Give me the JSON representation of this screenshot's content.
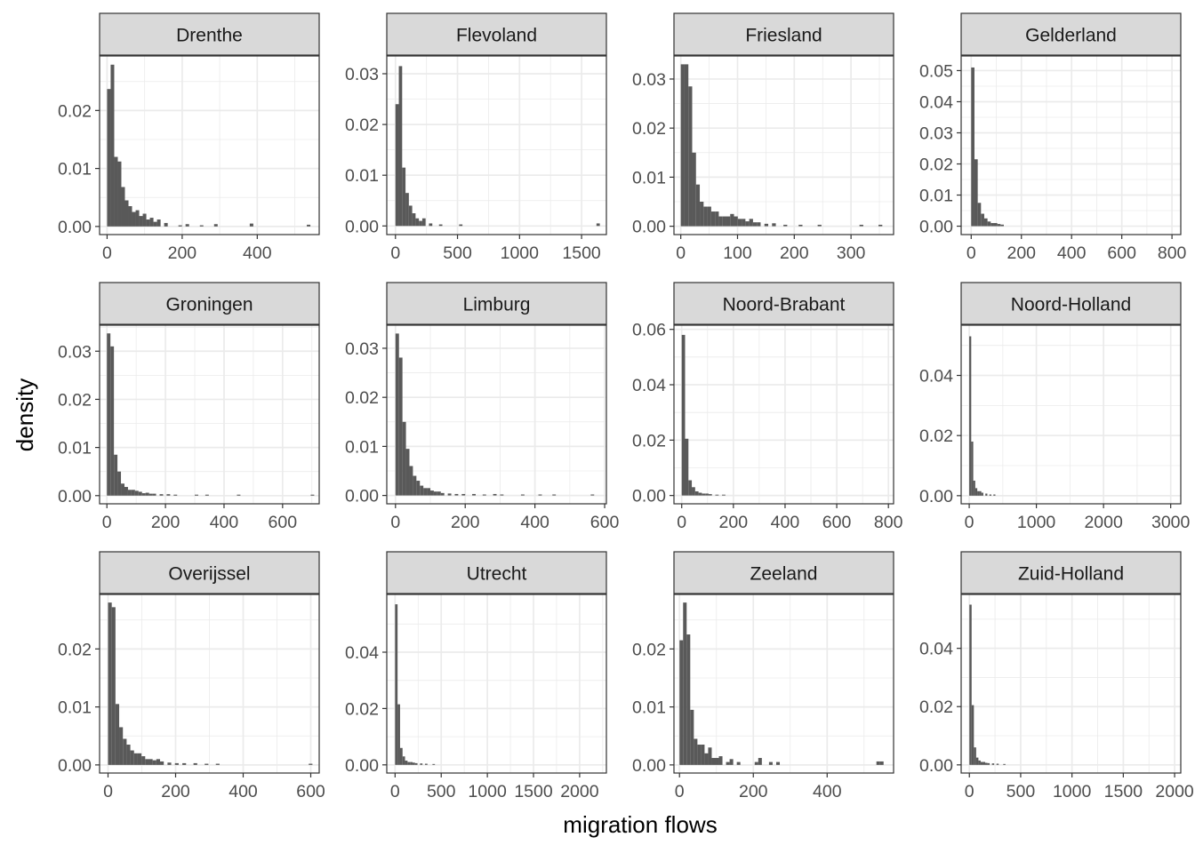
{
  "chart_data": {
    "type": "bar",
    "subtype": "faceted-histogram",
    "xlabel": "migration flows",
    "ylabel": "density",
    "colors": {
      "bar": "#595959",
      "strip": "#d9d9d9",
      "grid": "#ebebeb",
      "frame": "#333333"
    },
    "facets": [
      {
        "name": "Drenthe",
        "xlim": [
          -20,
          565
        ],
        "ylim": [
          -0.0014,
          0.0294
        ],
        "xticks": [
          0,
          200,
          400
        ],
        "yticks": [
          0,
          0.01,
          0.02
        ],
        "ytick_labels": [
          "0.00",
          "0.01",
          "0.02"
        ],
        "bin_width": 9.5,
        "bins": [
          [
            0,
            0.0237
          ],
          [
            9.5,
            0.0279
          ],
          [
            19,
            0.012
          ],
          [
            28.5,
            0.0112
          ],
          [
            38,
            0.0068
          ],
          [
            47.5,
            0.0045
          ],
          [
            57,
            0.0035
          ],
          [
            66.5,
            0.0025
          ],
          [
            76,
            0.0028
          ],
          [
            85.5,
            0.0018
          ],
          [
            95,
            0.0022
          ],
          [
            104.5,
            0.0012
          ],
          [
            114,
            0.0015
          ],
          [
            123.5,
            0.0008
          ],
          [
            133,
            0.0012
          ],
          [
            152,
            0.0006
          ],
          [
            190,
            0.0002
          ],
          [
            209,
            0.0004
          ],
          [
            247,
            0.0002
          ],
          [
            285,
            0.0004
          ],
          [
            380,
            0.0005
          ],
          [
            532,
            0.0003
          ]
        ]
      },
      {
        "name": "Flevoland",
        "xlim": [
          -70,
          1700
        ],
        "ylim": [
          -0.0017,
          0.0335
        ],
        "xticks": [
          0,
          500,
          1000,
          1500
        ],
        "yticks": [
          0,
          0.01,
          0.02,
          0.03
        ],
        "ytick_labels": [
          "0.00",
          "0.01",
          "0.02",
          "0.03"
        ],
        "bin_width": 27,
        "bins": [
          [
            0,
            0.024
          ],
          [
            27,
            0.0315
          ],
          [
            54,
            0.0115
          ],
          [
            81,
            0.0065
          ],
          [
            108,
            0.004
          ],
          [
            135,
            0.0025
          ],
          [
            162,
            0.0015
          ],
          [
            189,
            0.001
          ],
          [
            216,
            0.0015
          ],
          [
            270,
            0.0005
          ],
          [
            351,
            0.0003
          ],
          [
            513,
            0.0003
          ],
          [
            1620,
            0.0005
          ]
        ]
      },
      {
        "name": "Friesland",
        "xlim": [
          -12,
          375
        ],
        "ylim": [
          -0.0017,
          0.0347
        ],
        "xticks": [
          0,
          100,
          200,
          300
        ],
        "yticks": [
          0,
          0.01,
          0.02,
          0.03
        ],
        "ytick_labels": [
          "0.00",
          "0.01",
          "0.02",
          "0.03"
        ],
        "bin_width": 6.7,
        "bins": [
          [
            0,
            0.033
          ],
          [
            6.7,
            0.033
          ],
          [
            13.4,
            0.0285
          ],
          [
            20.1,
            0.015
          ],
          [
            26.8,
            0.0085
          ],
          [
            33.5,
            0.005
          ],
          [
            40.2,
            0.004
          ],
          [
            46.9,
            0.004
          ],
          [
            53.6,
            0.003
          ],
          [
            60.3,
            0.003
          ],
          [
            67,
            0.002
          ],
          [
            73.7,
            0.002
          ],
          [
            80.4,
            0.002
          ],
          [
            87.1,
            0.0025
          ],
          [
            93.8,
            0.002
          ],
          [
            100.5,
            0.0015
          ],
          [
            107.2,
            0.0015
          ],
          [
            113.9,
            0.001
          ],
          [
            120.6,
            0.0015
          ],
          [
            127.3,
            0.0008
          ],
          [
            134,
            0.0008
          ],
          [
            147.4,
            0.0005
          ],
          [
            160.8,
            0.0006
          ],
          [
            180.9,
            0.0003
          ],
          [
            207.7,
            0.0003
          ],
          [
            241.2,
            0.0003
          ],
          [
            314.9,
            0.0003
          ],
          [
            348.4,
            0.0003
          ]
        ]
      },
      {
        "name": "Gelderland",
        "xlim": [
          -40,
          835
        ],
        "ylim": [
          -0.0027,
          0.0547
        ],
        "xticks": [
          0,
          200,
          400,
          600,
          800
        ],
        "yticks": [
          0,
          0.01,
          0.02,
          0.03,
          0.04,
          0.05
        ],
        "ytick_labels": [
          "0.00",
          "0.01",
          "0.02",
          "0.03",
          "0.04",
          "0.05"
        ],
        "bin_width": 13,
        "bins": [
          [
            0,
            0.051
          ],
          [
            13,
            0.0215
          ],
          [
            26,
            0.0075
          ],
          [
            39,
            0.004
          ],
          [
            52,
            0.0025
          ],
          [
            65,
            0.0015
          ],
          [
            78,
            0.001
          ],
          [
            91,
            0.001
          ],
          [
            104,
            0.0007
          ],
          [
            117,
            0.0005
          ]
        ]
      },
      {
        "name": "Groningen",
        "xlim": [
          -25,
          725
        ],
        "ylim": [
          -0.0017,
          0.0354
        ],
        "xticks": [
          0,
          200,
          400,
          600
        ],
        "yticks": [
          0,
          0.01,
          0.02,
          0.03
        ],
        "ytick_labels": [
          "0.00",
          "0.01",
          "0.02",
          "0.03"
        ],
        "bin_width": 12,
        "bins": [
          [
            0,
            0.0337
          ],
          [
            12,
            0.031
          ],
          [
            24,
            0.0085
          ],
          [
            36,
            0.005
          ],
          [
            48,
            0.0025
          ],
          [
            60,
            0.0018
          ],
          [
            72,
            0.0012
          ],
          [
            84,
            0.0012
          ],
          [
            96,
            0.001
          ],
          [
            108,
            0.0008
          ],
          [
            120,
            0.0005
          ],
          [
            132,
            0.0006
          ],
          [
            144,
            0.0004
          ],
          [
            156,
            0.0004
          ],
          [
            180,
            0.0003
          ],
          [
            204,
            0.0003
          ],
          [
            228,
            0.0002
          ],
          [
            300,
            0.0002
          ],
          [
            336,
            0.0002
          ],
          [
            444,
            0.0002
          ],
          [
            696,
            0.0002
          ]
        ]
      },
      {
        "name": "Limburg",
        "xlim": [
          -25,
          605
        ],
        "ylim": [
          -0.0017,
          0.0347
        ],
        "xticks": [
          0,
          200,
          400,
          600
        ],
        "yticks": [
          0,
          0.01,
          0.02,
          0.03
        ],
        "ytick_labels": [
          "0.00",
          "0.01",
          "0.02",
          "0.03"
        ],
        "bin_width": 10,
        "bins": [
          [
            0,
            0.033
          ],
          [
            10,
            0.0281
          ],
          [
            20,
            0.015
          ],
          [
            30,
            0.0095
          ],
          [
            40,
            0.006
          ],
          [
            50,
            0.004
          ],
          [
            60,
            0.003
          ],
          [
            70,
            0.002
          ],
          [
            80,
            0.0015
          ],
          [
            90,
            0.0015
          ],
          [
            100,
            0.001
          ],
          [
            110,
            0.0008
          ],
          [
            120,
            0.0008
          ],
          [
            130,
            0.0005
          ],
          [
            150,
            0.0004
          ],
          [
            170,
            0.0003
          ],
          [
            190,
            0.0003
          ],
          [
            220,
            0.0003
          ],
          [
            250,
            0.0002
          ],
          [
            280,
            0.0003
          ],
          [
            300,
            0.0002
          ],
          [
            360,
            0.0002
          ],
          [
            410,
            0.0002
          ],
          [
            450,
            0.0002
          ],
          [
            560,
            0.0002
          ]
        ]
      },
      {
        "name": "Noord-Brabant",
        "xlim": [
          -30,
          820
        ],
        "ylim": [
          -0.003,
          0.0615
        ],
        "xticks": [
          0,
          200,
          400,
          600,
          800
        ],
        "yticks": [
          0,
          0.02,
          0.04,
          0.06
        ],
        "ytick_labels": [
          "0.00",
          "0.02",
          "0.04",
          "0.06"
        ],
        "bin_width": 13,
        "bins": [
          [
            0,
            0.058
          ],
          [
            13,
            0.0205
          ],
          [
            26,
            0.0055
          ],
          [
            39,
            0.003
          ],
          [
            52,
            0.0015
          ],
          [
            65,
            0.001
          ],
          [
            78,
            0.0007
          ],
          [
            91,
            0.0007
          ],
          [
            104,
            0.0005
          ],
          [
            130,
            0.0003
          ],
          [
            156,
            0.0003
          ]
        ]
      },
      {
        "name": "Noord-Holland",
        "xlim": [
          -120,
          3150
        ],
        "ylim": [
          -0.0027,
          0.0567
        ],
        "xticks": [
          0,
          1000,
          2000,
          3000
        ],
        "yticks": [
          0,
          0.02,
          0.04
        ],
        "ytick_labels": [
          "0.00",
          "0.02",
          "0.04"
        ],
        "bin_width": 30,
        "bins": [
          [
            0,
            0.053
          ],
          [
            30,
            0.018
          ],
          [
            60,
            0.005
          ],
          [
            90,
            0.0025
          ],
          [
            120,
            0.0015
          ],
          [
            150,
            0.0015
          ],
          [
            180,
            0.001
          ],
          [
            240,
            0.0007
          ],
          [
            300,
            0.0004
          ],
          [
            360,
            0.0004
          ]
        ]
      },
      {
        "name": "Overijssel",
        "xlim": [
          -25,
          625
        ],
        "ylim": [
          -0.0014,
          0.0294
        ],
        "xticks": [
          0,
          200,
          400,
          600
        ],
        "yticks": [
          0,
          0.01,
          0.02
        ],
        "ytick_labels": [
          "0.00",
          "0.01",
          "0.02"
        ],
        "bin_width": 11,
        "bins": [
          [
            0,
            0.028
          ],
          [
            11,
            0.0272
          ],
          [
            22,
            0.0105
          ],
          [
            33,
            0.0065
          ],
          [
            44,
            0.0045
          ],
          [
            55,
            0.0035
          ],
          [
            66,
            0.0025
          ],
          [
            77,
            0.002
          ],
          [
            88,
            0.002
          ],
          [
            99,
            0.0015
          ],
          [
            110,
            0.001
          ],
          [
            121,
            0.001
          ],
          [
            132,
            0.0008
          ],
          [
            143,
            0.001
          ],
          [
            154,
            0.0006
          ],
          [
            176,
            0.0004
          ],
          [
            198,
            0.0003
          ],
          [
            220,
            0.0003
          ],
          [
            253,
            0.0003
          ],
          [
            286,
            0.0002
          ],
          [
            319,
            0.0002
          ],
          [
            594,
            0.0002
          ]
        ]
      },
      {
        "name": "Utrecht",
        "xlim": [
          -90,
          2290
        ],
        "ylim": [
          -0.0029,
          0.0605
        ],
        "xticks": [
          0,
          500,
          1000,
          1500,
          2000
        ],
        "yticks": [
          0,
          0.02,
          0.04
        ],
        "ytick_labels": [
          "0.00",
          "0.02",
          "0.04"
        ],
        "bin_width": 27,
        "bins": [
          [
            0,
            0.057
          ],
          [
            27,
            0.0215
          ],
          [
            54,
            0.006
          ],
          [
            81,
            0.003
          ],
          [
            108,
            0.0015
          ],
          [
            135,
            0.001
          ],
          [
            162,
            0.001
          ],
          [
            189,
            0.0008
          ],
          [
            216,
            0.0006
          ],
          [
            270,
            0.0005
          ],
          [
            324,
            0.0004
          ],
          [
            405,
            0.0003
          ]
        ]
      },
      {
        "name": "Zeeland",
        "xlim": [
          -15,
          580
        ],
        "ylim": [
          -0.0014,
          0.0294
        ],
        "xticks": [
          0,
          200,
          400
        ],
        "yticks": [
          0,
          0.01,
          0.02
        ],
        "ytick_labels": [
          "0.00",
          "0.01",
          "0.02"
        ],
        "bin_width": 9.7,
        "bins": [
          [
            0,
            0.0215
          ],
          [
            9.7,
            0.028
          ],
          [
            19.4,
            0.0225
          ],
          [
            29.1,
            0.0095
          ],
          [
            38.8,
            0.0045
          ],
          [
            48.5,
            0.0035
          ],
          [
            58.2,
            0.0035
          ],
          [
            67.9,
            0.002
          ],
          [
            77.6,
            0.003
          ],
          [
            87.3,
            0.0012
          ],
          [
            97,
            0.0012
          ],
          [
            106.7,
            0.0015
          ],
          [
            126.1,
            0.0005
          ],
          [
            135.8,
            0.001
          ],
          [
            155.2,
            0.0005
          ],
          [
            203.7,
            0.0005
          ],
          [
            213.4,
            0.0012
          ],
          [
            242.5,
            0.0005
          ],
          [
            262,
            0.0005
          ],
          [
            533.5,
            0.0006
          ],
          [
            543.2,
            0.0006
          ]
        ]
      },
      {
        "name": "Zuid-Holland",
        "xlim": [
          -80,
          2060
        ],
        "ylim": [
          -0.0028,
          0.0585
        ],
        "xticks": [
          0,
          500,
          1000,
          1500,
          2000
        ],
        "yticks": [
          0,
          0.02,
          0.04
        ],
        "ytick_labels": [
          "0.00",
          "0.02",
          "0.04"
        ],
        "bin_width": 22,
        "bins": [
          [
            0,
            0.055
          ],
          [
            22,
            0.0205
          ],
          [
            44,
            0.006
          ],
          [
            66,
            0.0025
          ],
          [
            88,
            0.0015
          ],
          [
            110,
            0.001
          ],
          [
            132,
            0.001
          ],
          [
            154,
            0.0007
          ],
          [
            176,
            0.0006
          ],
          [
            220,
            0.0005
          ],
          [
            264,
            0.0004
          ],
          [
            330,
            0.0003
          ]
        ]
      }
    ]
  }
}
